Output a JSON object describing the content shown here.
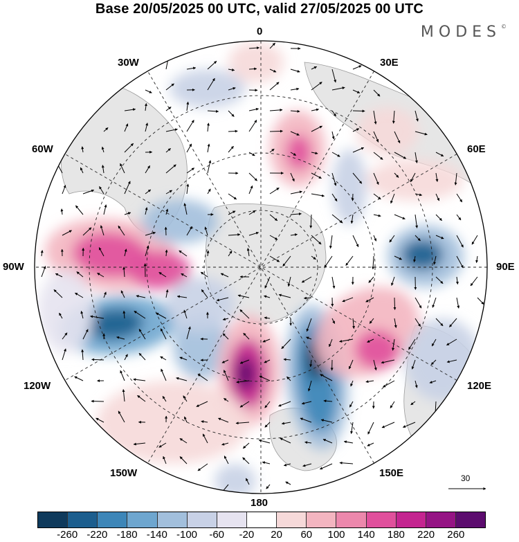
{
  "title": "Base 20/05/2025 00 UTC, valid 27/05/2025 00 UTC",
  "logo": {
    "text": "MODES",
    "mark": "©"
  },
  "longitude_labels": {
    "top": "0",
    "bottom": "180",
    "left": "90W",
    "right": "90E",
    "w30": "30W",
    "w60": "60W",
    "w120": "120W",
    "w150": "150W",
    "e30": "30E",
    "e60": "60E",
    "e120": "120E",
    "e150": "150E"
  },
  "vector_scale": {
    "label": "30"
  },
  "colorbar": {
    "colors": [
      "#0f3a5c",
      "#1c5e8e",
      "#3d86b8",
      "#6ea6cf",
      "#a2bfdc",
      "#c8d1e6",
      "#e6e3f0",
      "#ffffff",
      "#f6d9d9",
      "#f3b5c0",
      "#ec88ac",
      "#e0509c",
      "#c42590",
      "#951484",
      "#5c0c6e"
    ],
    "ticks": [
      "-260",
      "-220",
      "-180",
      "-140",
      "-100",
      "-60",
      "-20",
      "20",
      "60",
      "100",
      "140",
      "180",
      "220",
      "260"
    ]
  },
  "legend_colors": {
    "land": "#e8e8e8",
    "coast": "#999999",
    "grid": "#222222"
  }
}
